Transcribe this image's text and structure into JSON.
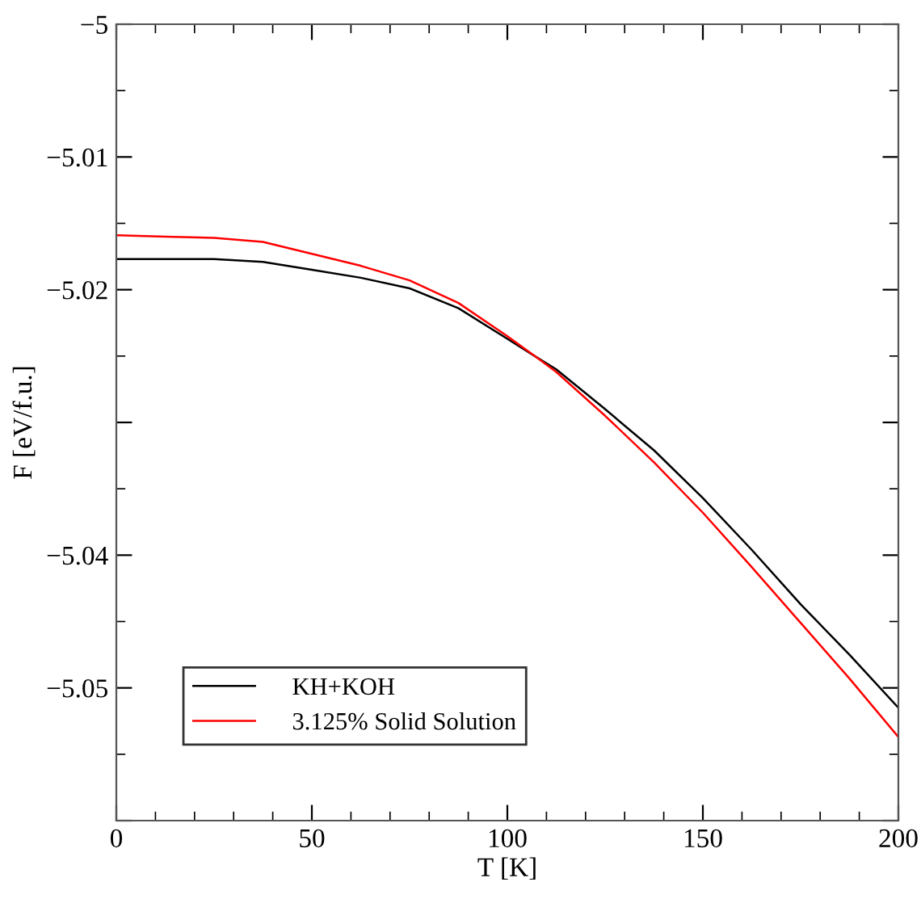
{
  "chart_data": {
    "type": "line",
    "xlabel": "T [K]",
    "ylabel": "F [eV/f.u.]",
    "x": [
      0,
      12.5,
      25,
      37.5,
      50,
      62.5,
      75,
      87.5,
      100,
      107,
      112.5,
      125,
      137.5,
      150,
      162.5,
      175,
      187.5,
      200
    ],
    "series": [
      {
        "name": "KH+KOH",
        "color": "#000000",
        "values": [
          -5.0177,
          -5.0177,
          -5.0177,
          -5.0179,
          -5.0185,
          -5.0191,
          -5.0199,
          -5.0214,
          -5.0237,
          -5.025,
          -5.026,
          -5.029,
          -5.0321,
          -5.0357,
          -5.0396,
          -5.0437,
          -5.0475,
          -5.0515
        ]
      },
      {
        "name": "3.125% Solid Solution",
        "color": "#ff0000",
        "values": [
          -5.0159,
          -5.016,
          -5.0161,
          -5.0164,
          -5.0173,
          -5.0182,
          -5.0193,
          -5.021,
          -5.0235,
          -5.025,
          -5.0262,
          -5.0295,
          -5.033,
          -5.0368,
          -5.0409,
          -5.0451,
          -5.0493,
          -5.0537
        ]
      }
    ],
    "xlim": [
      0,
      200
    ],
    "xticks": [
      0,
      50,
      100,
      150,
      200
    ],
    "ylim": [
      -5.06,
      -5
    ],
    "yticks": [
      {
        "value": -5.06,
        "label": null
      },
      -5.05,
      -5.04,
      {
        "value": -5.03,
        "label": null
      },
      -5.02,
      -5.01,
      -5
    ],
    "legend": "bottom left",
    "grid": false
  }
}
